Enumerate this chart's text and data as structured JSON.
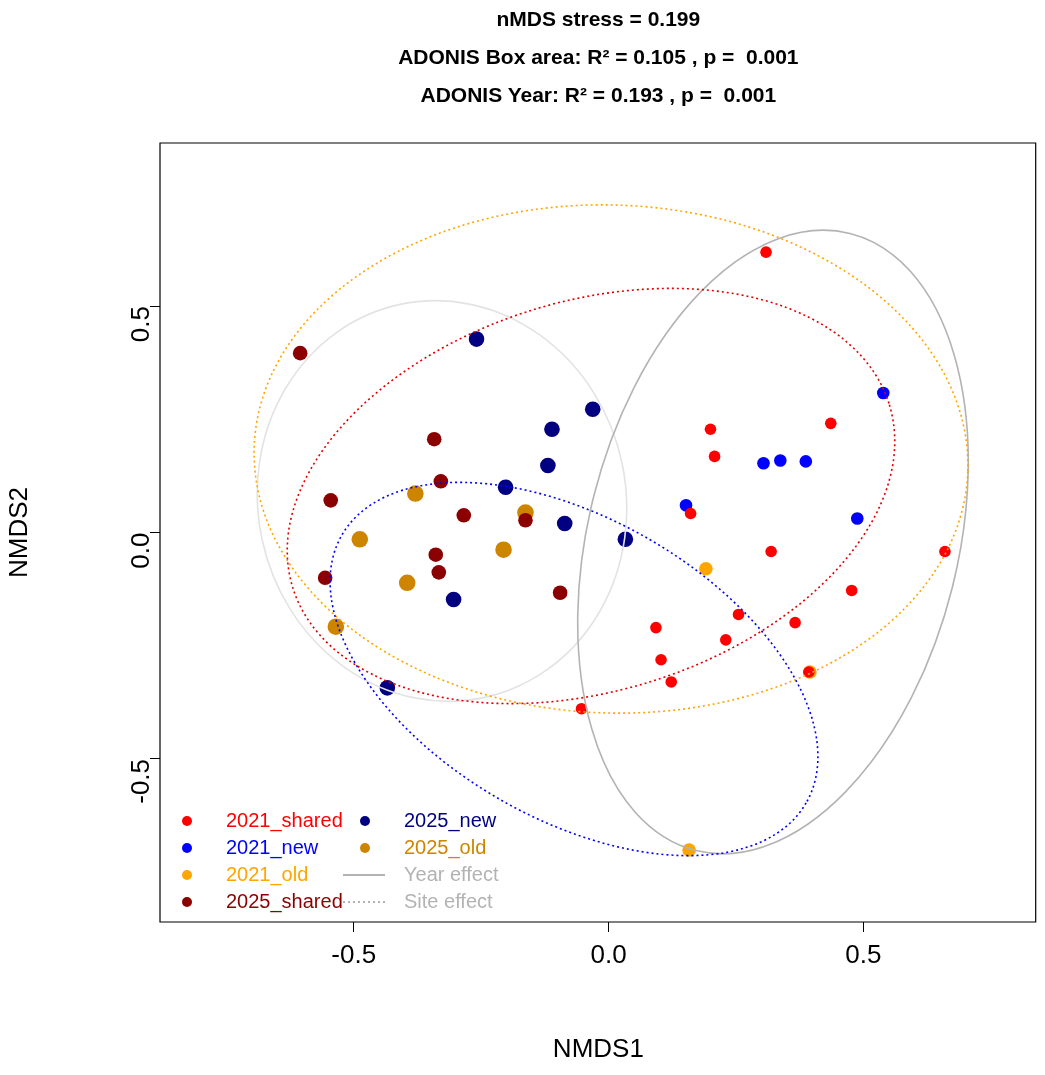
{
  "chart_data": {
    "type": "scatter",
    "title": "nMDS stress = 0.199\nADONIS Box area: R² = 0.105 , p =  0.001\nADONIS Year: R² = 0.193 , p =  0.001",
    "xlabel": "NMDS1",
    "ylabel": "NMDS2",
    "xlim": [
      -0.88,
      0.84
    ],
    "ylim": [
      -0.86,
      0.86
    ],
    "xticks": [
      -0.5,
      {
        "value": 0,
        "label": "0.0"
      },
      0.5
    ],
    "yticks": [
      -0.5,
      {
        "value": 0,
        "label": "0.0"
      },
      0.5
    ],
    "grid": false,
    "legend": "bottom left",
    "marker": "circle",
    "annotations": [
      "Year effect",
      "Site effect"
    ],
    "series": [
      {
        "name": "2021_shared",
        "color": "#ff0000",
        "x": [
          0.309,
          0.436,
          0.2,
          0.208,
          0.161,
          0.319,
          0.66,
          0.477,
          0.255,
          0.366,
          0.093,
          0.23,
          0.103,
          0.123,
          0.393,
          -0.053
        ],
        "values": [
          0.619,
          0.241,
          0.228,
          0.168,
          0.042,
          -0.042,
          -0.042,
          -0.128,
          -0.181,
          -0.199,
          -0.21,
          -0.237,
          -0.281,
          -0.33,
          -0.308,
          -0.389
        ]
      },
      {
        "name": "2021_new",
        "color": "#0000ff",
        "x": [
          0.539,
          0.304,
          0.337,
          0.387,
          0.152,
          0.488
        ],
        "values": [
          0.308,
          0.153,
          0.159,
          0.157,
          0.06,
          0.031
        ]
      },
      {
        "name": "2021_old",
        "color": "#ffa500",
        "x": [
          0.191,
          0.395,
          0.158
        ],
        "values": [
          -0.08,
          -0.308,
          -0.701
        ]
      },
      {
        "name": "2025_shared",
        "color": "#8b0000",
        "x": [
          -0.605,
          -0.342,
          -0.545,
          -0.329,
          -0.284,
          -0.163,
          -0.339,
          -0.333,
          -0.556,
          -0.095
        ],
        "values": [
          0.396,
          0.206,
          0.071,
          0.113,
          0.038,
          0.027,
          -0.049,
          -0.088,
          -0.1,
          -0.133
        ]
      },
      {
        "name": "2025_new",
        "color": "#000080",
        "x": [
          -0.259,
          -0.031,
          -0.111,
          -0.119,
          -0.202,
          -0.086,
          0.033,
          -0.304,
          -0.434
        ],
        "values": [
          0.427,
          0.272,
          0.228,
          0.148,
          0.1,
          0.02,
          -0.015,
          -0.148,
          -0.343
        ]
      },
      {
        "name": "2025_old",
        "color": "#cd8500",
        "x": [
          -0.379,
          -0.163,
          -0.488,
          -0.206,
          -0.395,
          -0.535
        ],
        "values": [
          0.086,
          0.044,
          -0.015,
          -0.038,
          -0.111,
          -0.208
        ]
      }
    ]
  }
}
